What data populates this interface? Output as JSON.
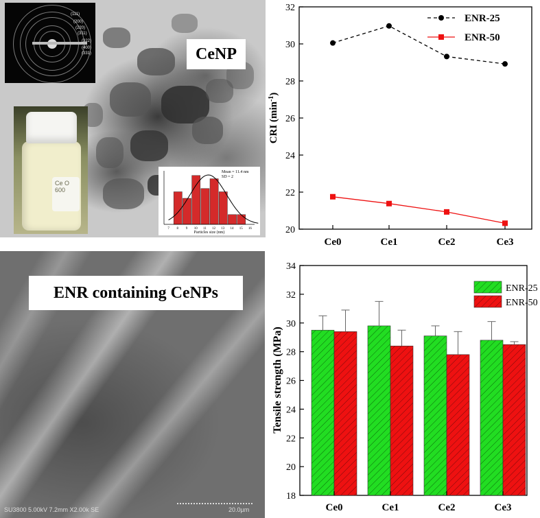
{
  "panels": {
    "tem": {
      "label": "CeNP",
      "saed_labels": [
        "(111)",
        "(200)",
        "(220)",
        "(311)",
        "(322)",
        "(400)",
        "(331)"
      ],
      "vial_text": "Ce O\n600"
    },
    "sem": {
      "label": "ENR containing CeNPs",
      "info_text": "SU3800 5.00kV 7.2mm X2.00k SE",
      "scale_text": "20.0µm"
    }
  },
  "chart_data": [
    {
      "type": "bar",
      "id": "particle-size-histogram",
      "categories": [
        "7",
        "8",
        "9",
        "10",
        "11",
        "12",
        "13",
        "14",
        "15",
        "16"
      ],
      "values": [
        0,
        10,
        8,
        15,
        11,
        14,
        10,
        3,
        3,
        0
      ],
      "annotations": [
        "Mean = 11.4 nm",
        "SD = 2"
      ],
      "xlabel": "Particles size (nm)",
      "ylabel": "",
      "has_normal_fit": true,
      "colors": {
        "bar": "#d42a2a",
        "edge": "#333333",
        "fit": "#000000"
      }
    },
    {
      "type": "line",
      "id": "cri-chart",
      "categories": [
        "Ce0",
        "Ce1",
        "Ce2",
        "Ce3"
      ],
      "series": [
        {
          "name": "ENR-25",
          "values": [
            30.05,
            30.97,
            29.32,
            28.92
          ],
          "color": "#000000",
          "line": "dashed",
          "marker": "circle"
        },
        {
          "name": "ENR-50",
          "values": [
            21.75,
            21.38,
            20.93,
            20.32
          ],
          "color": "#ee1111",
          "line": "solid",
          "marker": "square"
        }
      ],
      "ylabel": "CRI (min",
      "ylabel_sup": "-1",
      "ylabel_end": ")",
      "xlabel": "",
      "ylim": [
        20,
        32
      ],
      "yticks": [
        "20",
        "22",
        "24",
        "26",
        "28",
        "30",
        "32"
      ],
      "legend_position": "top-right",
      "grid": false
    },
    {
      "type": "bar",
      "id": "tensile-chart",
      "categories": [
        "Ce0",
        "Ce1",
        "Ce2",
        "Ce3"
      ],
      "series": [
        {
          "name": "ENR-25",
          "values": [
            29.5,
            29.8,
            29.1,
            28.8
          ],
          "errors": [
            1.0,
            1.7,
            0.7,
            1.3
          ],
          "color": "#22dd22",
          "hatch": true
        },
        {
          "name": "ENR-50",
          "values": [
            29.4,
            28.4,
            27.8,
            28.5
          ],
          "errors": [
            1.5,
            1.1,
            1.6,
            0.2
          ],
          "color": "#ee1111",
          "hatch": true
        }
      ],
      "ylabel": "Tensile strength (MPa)",
      "xlabel": "",
      "ylim": [
        18,
        34
      ],
      "yticks": [
        "18",
        "20",
        "22",
        "24",
        "26",
        "28",
        "30",
        "32",
        "34"
      ],
      "legend_position": "top-right",
      "grid": false
    }
  ]
}
